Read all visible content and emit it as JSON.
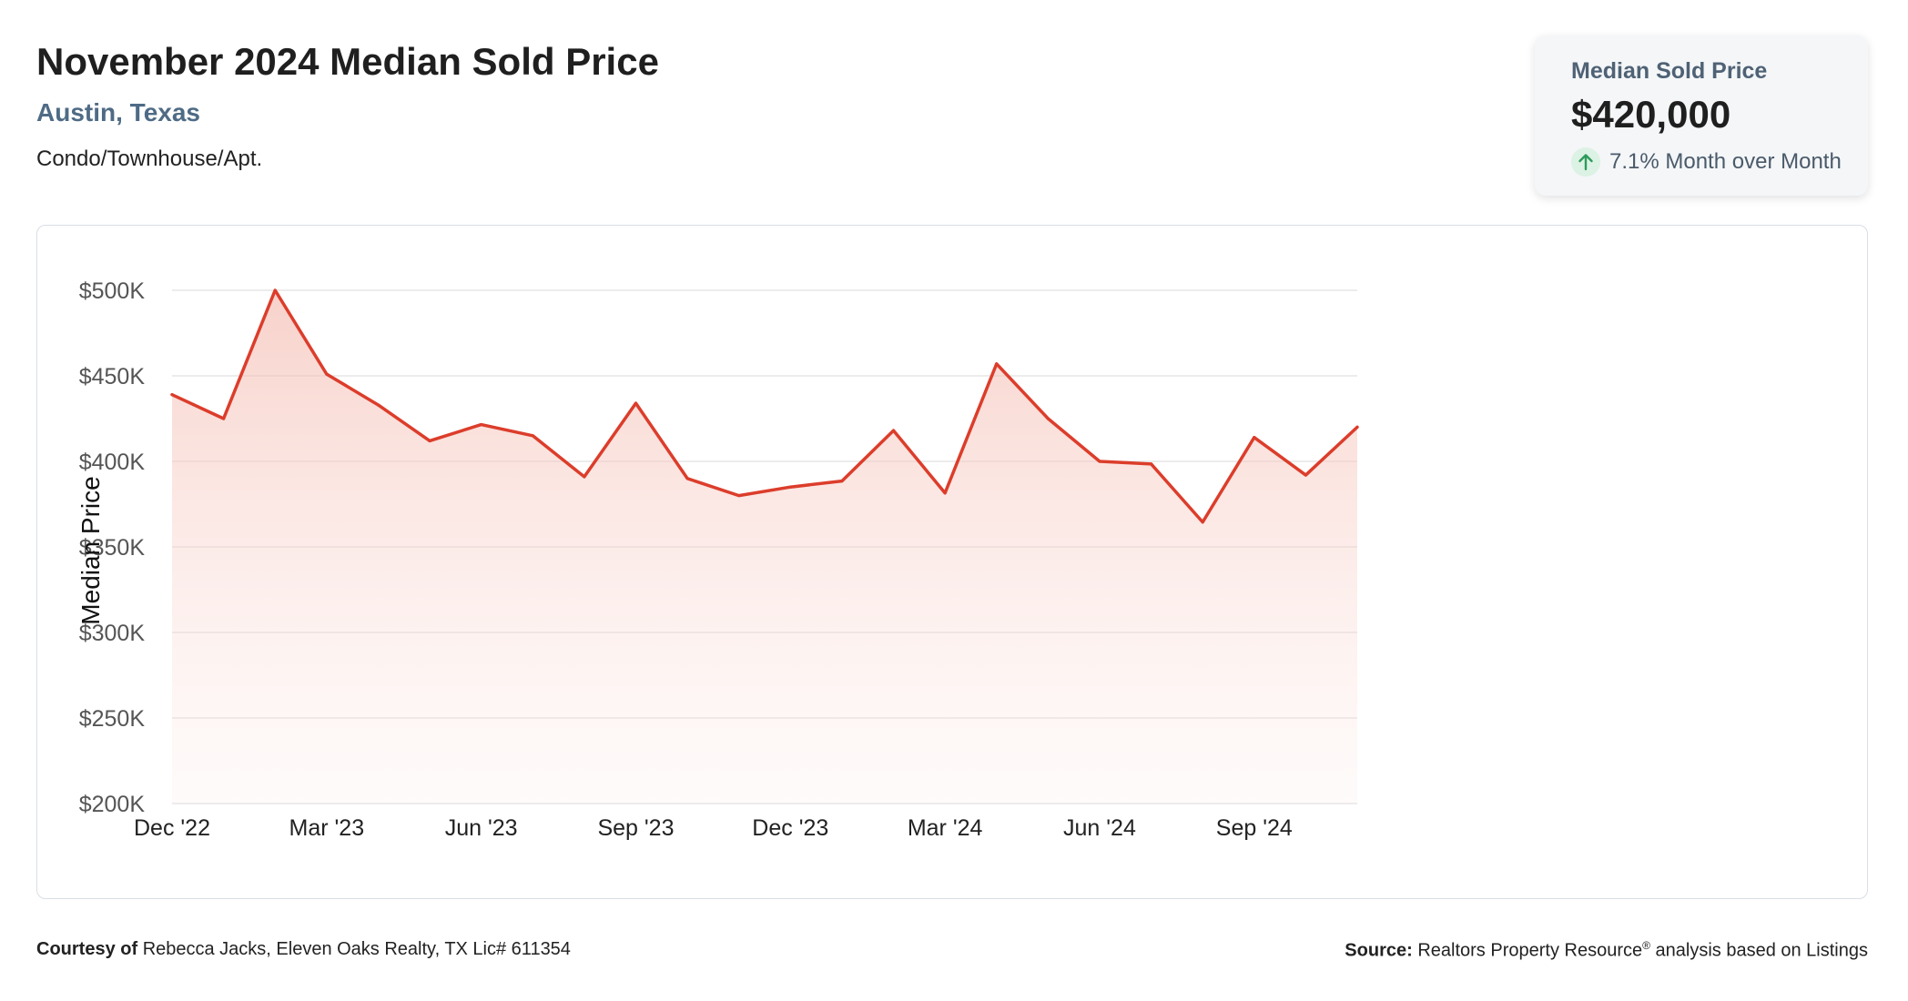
{
  "header": {
    "title": "November 2024 Median Sold Price",
    "location": "Austin, Texas",
    "property_type": "Condo/Townhouse/Apt."
  },
  "stat_card": {
    "label": "Median Sold Price",
    "value": "$420,000",
    "change": "7.1% Month over Month",
    "change_icon": "arrow-up-icon",
    "change_color": "#2e9b5b"
  },
  "colors": {
    "line": "#dc3d2b",
    "fill": "#f6c9c1",
    "grid": "#e6e6e6"
  },
  "chart_data": {
    "type": "area",
    "title": "",
    "xlabel": "",
    "ylabel": "Median Price",
    "ylim": [
      200000,
      500000
    ],
    "yticks": [
      200000,
      250000,
      300000,
      350000,
      400000,
      450000,
      500000
    ],
    "ytick_labels": [
      "$200K",
      "$250K",
      "$300K",
      "$350K",
      "$400K",
      "$450K",
      "$500K"
    ],
    "x": [
      "Dec '22",
      "Jan '23",
      "Feb '23",
      "Mar '23",
      "Apr '23",
      "May '23",
      "Jun '23",
      "Jul '23",
      "Aug '23",
      "Sep '23",
      "Oct '23",
      "Nov '23",
      "Dec '23",
      "Jan '24",
      "Feb '24",
      "Mar '24",
      "Apr '24",
      "May '24",
      "Jun '24",
      "Jul '24",
      "Aug '24",
      "Sep '24",
      "Oct '24",
      "Nov '24"
    ],
    "xtick_labels": [
      "Dec '22",
      "Mar '23",
      "Jun '23",
      "Sep '23",
      "Dec '23",
      "Mar '24",
      "Jun '24",
      "Sep '24"
    ],
    "series": [
      {
        "values": [
          439000,
          425000,
          500000,
          451000,
          433000,
          412000,
          421500,
          415000,
          391000,
          434000,
          390000,
          380000,
          385000,
          388500,
          418000,
          381500,
          457000,
          425000,
          400000,
          398500,
          364500,
          414000,
          392000,
          420000
        ]
      }
    ],
    "grid": true,
    "legend": "none"
  },
  "footer": {
    "courtesy_label": "Courtesy of",
    "courtesy_text": "Rebecca Jacks, Eleven Oaks Realty, TX Lic# 611354",
    "source_label": "Source:",
    "source_text_a": "Realtors Property Resource",
    "source_registered": "®",
    "source_text_b": "analysis based on Listings"
  }
}
